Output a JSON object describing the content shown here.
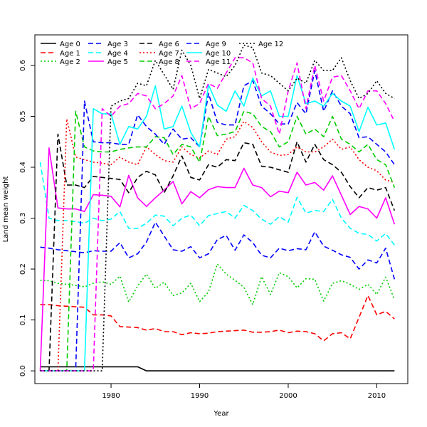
{
  "chart_data": {
    "type": "line",
    "title": "",
    "xlabel": "Year",
    "ylabel": "Land mean weight",
    "xlim": [
      1971.4,
      2013.5
    ],
    "ylim": [
      -0.025,
      0.66
    ],
    "x_ticks": [
      1980,
      1990,
      2000,
      2010
    ],
    "y_ticks": [
      0.0,
      0.1,
      0.2,
      0.3,
      0.4,
      0.5,
      0.6
    ],
    "grid": false,
    "legend_position": "top-left",
    "x": [
      1972,
      1973,
      1974,
      1975,
      1976,
      1977,
      1978,
      1979,
      1980,
      1981,
      1982,
      1983,
      1984,
      1985,
      1986,
      1987,
      1988,
      1989,
      1990,
      1991,
      1992,
      1993,
      1994,
      1995,
      1996,
      1997,
      1998,
      1999,
      2000,
      2001,
      2002,
      2003,
      2004,
      2005,
      2006,
      2007,
      2008,
      2009,
      2010,
      2011,
      2012
    ],
    "series": [
      {
        "name": "Age 0",
        "color": "#000000",
        "dash": "solid",
        "values": [
          0.008,
          0.008,
          0.008,
          0.008,
          0.008,
          0.008,
          0.008,
          0.008,
          0.008,
          0.008,
          0.008,
          0.008,
          0,
          0,
          0,
          0,
          0,
          0,
          0,
          0,
          0,
          0,
          0,
          0,
          0,
          0,
          0,
          0,
          0,
          0,
          0,
          0,
          0,
          0,
          0,
          0,
          0,
          0,
          0,
          0,
          0
        ]
      },
      {
        "name": "Age 1",
        "color": "#ff0000",
        "dash": "dashed",
        "values": [
          0.13,
          0.13,
          0.128,
          0.127,
          0.126,
          0.125,
          0.11,
          0.11,
          0.108,
          0.087,
          0.086,
          0.085,
          0.08,
          0.083,
          0.077,
          0.077,
          0.071,
          0.075,
          0.073,
          0.074,
          0.077,
          0.078,
          0.079,
          0.08,
          0.076,
          0.076,
          0.077,
          0.08,
          0.075,
          0.078,
          0.077,
          0.073,
          0.059,
          0.073,
          0.075,
          0.063,
          0.105,
          0.148,
          0.11,
          0.117,
          0.102
        ]
      },
      {
        "name": "Age 2",
        "color": "#00cd00",
        "dash": "dotted",
        "values": [
          0.178,
          0.177,
          0.172,
          0.17,
          0.168,
          0.165,
          0.172,
          0.175,
          0.17,
          0.186,
          0.135,
          0.167,
          0.19,
          0.162,
          0.174,
          0.148,
          0.153,
          0.172,
          0.136,
          0.155,
          0.21,
          0.19,
          0.178,
          0.164,
          0.13,
          0.185,
          0.15,
          0.193,
          0.185,
          0.163,
          0.181,
          0.18,
          0.137,
          0.172,
          0.177,
          0.17,
          0.16,
          0.17,
          0.15,
          0.184,
          0.14
        ]
      },
      {
        "name": "Age 3",
        "color": "#0000ff",
        "dash": "dashed",
        "values": [
          0.243,
          0.241,
          0.238,
          0.236,
          0.234,
          0.232,
          0.236,
          0.235,
          0.235,
          0.252,
          0.222,
          0.23,
          0.253,
          0.292,
          0.265,
          0.238,
          0.235,
          0.244,
          0.222,
          0.23,
          0.258,
          0.266,
          0.237,
          0.267,
          0.252,
          0.227,
          0.222,
          0.241,
          0.236,
          0.24,
          0.238,
          0.273,
          0.245,
          0.237,
          0.228,
          0.223,
          0.2,
          0.218,
          0.212,
          0.241,
          0.18
        ]
      },
      {
        "name": "Age 4",
        "color": "#00ffff",
        "dash": "dashed",
        "values": [
          0.41,
          0.3,
          0.295,
          0.295,
          0.293,
          0.29,
          0.3,
          0.295,
          0.298,
          0.313,
          0.28,
          0.28,
          0.29,
          0.306,
          0.304,
          0.285,
          0.3,
          0.306,
          0.285,
          0.305,
          0.309,
          0.313,
          0.3,
          0.325,
          0.315,
          0.298,
          0.288,
          0.303,
          0.292,
          0.341,
          0.31,
          0.315,
          0.313,
          0.337,
          0.3,
          0.28,
          0.27,
          0.268,
          0.255,
          0.27,
          0.247
        ]
      },
      {
        "name": "Age 5",
        "color": "#ff00ff",
        "dash": "solid",
        "values": [
          0.0,
          0.438,
          0.32,
          0.318,
          0.318,
          0.313,
          0.346,
          0.345,
          0.343,
          0.322,
          0.384,
          0.34,
          0.323,
          0.34,
          0.355,
          0.372,
          0.328,
          0.352,
          0.34,
          0.356,
          0.362,
          0.36,
          0.36,
          0.398,
          0.365,
          0.36,
          0.342,
          0.353,
          0.35,
          0.39,
          0.365,
          0.37,
          0.355,
          0.383,
          0.345,
          0.307,
          0.323,
          0.318,
          0.3,
          0.34,
          0.288
        ]
      },
      {
        "name": "Age 6",
        "color": "#000000",
        "dash": "dashed",
        "values": [
          0.0,
          0.0,
          0.465,
          0.365,
          0.365,
          0.36,
          0.382,
          0.38,
          0.378,
          0.376,
          0.35,
          0.38,
          0.392,
          0.385,
          0.35,
          0.383,
          0.422,
          0.38,
          0.375,
          0.405,
          0.4,
          0.415,
          0.413,
          0.448,
          0.445,
          0.402,
          0.4,
          0.395,
          0.39,
          0.45,
          0.41,
          0.445,
          0.415,
          0.405,
          0.39,
          0.362,
          0.34,
          0.36,
          0.355,
          0.36,
          0.315
        ]
      },
      {
        "name": "Age 7",
        "color": "#ff0000",
        "dash": "dotted",
        "values": [
          0.0,
          0.0,
          0.0,
          0.495,
          0.42,
          0.415,
          0.41,
          0.408,
          0.405,
          0.42,
          0.41,
          0.405,
          0.44,
          0.425,
          0.413,
          0.41,
          0.44,
          0.425,
          0.418,
          0.432,
          0.425,
          0.455,
          0.46,
          0.49,
          0.478,
          0.45,
          0.43,
          0.423,
          0.425,
          0.44,
          0.43,
          0.43,
          0.44,
          0.455,
          0.435,
          0.44,
          0.415,
          0.4,
          0.393,
          0.375,
          0.37
        ]
      },
      {
        "name": "Age 8",
        "color": "#00cd00",
        "dash": "dashed",
        "values": [
          0.0,
          0.0,
          0.0,
          0.0,
          0.51,
          0.44,
          0.432,
          0.43,
          0.43,
          0.435,
          0.438,
          0.44,
          0.44,
          0.46,
          0.458,
          0.425,
          0.445,
          0.44,
          0.41,
          0.5,
          0.462,
          0.465,
          0.47,
          0.51,
          0.505,
          0.48,
          0.47,
          0.44,
          0.45,
          0.5,
          0.465,
          0.475,
          0.46,
          0.5,
          0.455,
          0.445,
          0.43,
          0.445,
          0.415,
          0.405,
          0.36
        ]
      },
      {
        "name": "Age 9",
        "color": "#0000ff",
        "dash": "dashed",
        "values": [
          0.0,
          0.0,
          0.0,
          0.0,
          0.0,
          0.53,
          0.45,
          0.448,
          0.448,
          0.445,
          0.445,
          0.503,
          0.48,
          0.465,
          0.445,
          0.475,
          0.455,
          0.458,
          0.44,
          0.545,
          0.488,
          0.483,
          0.483,
          0.56,
          0.57,
          0.52,
          0.505,
          0.485,
          0.485,
          0.527,
          0.505,
          0.59,
          0.51,
          0.55,
          0.52,
          0.505,
          0.458,
          0.46,
          0.445,
          0.43,
          0.405
        ]
      },
      {
        "name": "Age 10",
        "color": "#00ffff",
        "dash": "solid",
        "values": [
          0.0,
          0.0,
          0.0,
          0.0,
          0.0,
          0.0,
          0.515,
          0.505,
          0.505,
          0.445,
          0.48,
          0.475,
          0.5,
          0.56,
          0.475,
          0.48,
          0.52,
          0.468,
          0.44,
          0.562,
          0.522,
          0.51,
          0.55,
          0.52,
          0.575,
          0.54,
          0.55,
          0.5,
          0.5,
          0.58,
          0.525,
          0.53,
          0.52,
          0.545,
          0.53,
          0.52,
          0.47,
          0.518,
          0.483,
          0.487,
          0.435
        ]
      },
      {
        "name": "Age 11",
        "color": "#ff00ff",
        "dash": "dashed",
        "values": [
          0.0,
          0.0,
          0.0,
          0.0,
          0.0,
          0.0,
          0.0,
          0.515,
          0.5,
          0.52,
          0.525,
          0.545,
          0.54,
          0.515,
          0.525,
          0.54,
          0.58,
          0.515,
          0.525,
          0.565,
          0.555,
          0.585,
          0.615,
          0.615,
          0.605,
          0.535,
          0.52,
          0.465,
          0.55,
          0.605,
          0.515,
          0.6,
          0.53,
          0.577,
          0.58,
          0.55,
          0.515,
          0.55,
          0.55,
          0.525,
          0.49
        ]
      },
      {
        "name": "Age 12",
        "color": "#000000",
        "dash": "dotted",
        "values": [
          0.0,
          0.0,
          0.0,
          0.0,
          0.0,
          0.0,
          0.0,
          0.0,
          0.52,
          0.53,
          0.535,
          0.565,
          0.56,
          0.61,
          0.582,
          0.553,
          0.63,
          0.6,
          0.535,
          0.592,
          0.585,
          0.578,
          0.6,
          0.64,
          0.635,
          0.585,
          0.58,
          0.565,
          0.55,
          0.575,
          0.565,
          0.61,
          0.59,
          0.59,
          0.615,
          0.57,
          0.535,
          0.545,
          0.57,
          0.545,
          0.535
        ]
      }
    ]
  }
}
